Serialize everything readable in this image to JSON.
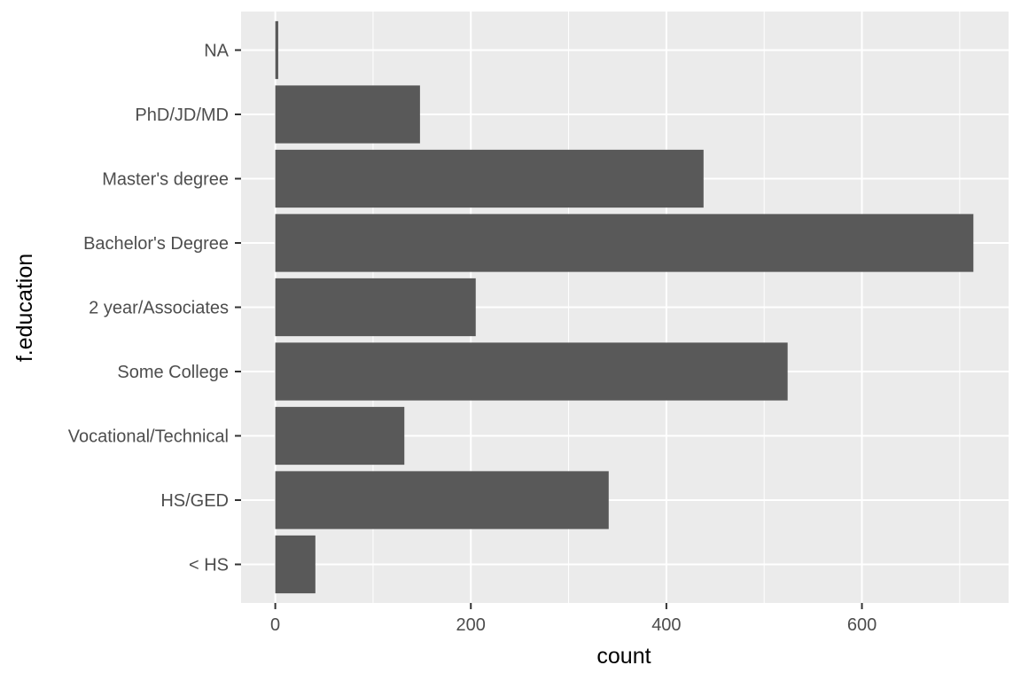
{
  "chart_data": {
    "type": "bar",
    "orientation": "horizontal",
    "categories": [
      "< HS",
      "HS/GED",
      "Vocational/Technical",
      "Some College",
      "2 year/Associates",
      "Bachelor's Degree",
      "Master's degree",
      "PhD/JD/MD",
      "NA"
    ],
    "values": [
      41,
      341,
      132,
      524,
      205,
      714,
      438,
      148,
      3
    ],
    "xlabel": "count",
    "ylabel": "f.education",
    "xlim": [
      -35,
      750
    ],
    "x_ticks": [
      0,
      200,
      400,
      600
    ],
    "grid": true,
    "legend": "none",
    "colors": {
      "panel_background": "#ebebeb",
      "grid_major": "#ffffff",
      "bar_fill": "#595959",
      "tick_text": "#4d4d4d",
      "axis_title": "#000000"
    }
  }
}
